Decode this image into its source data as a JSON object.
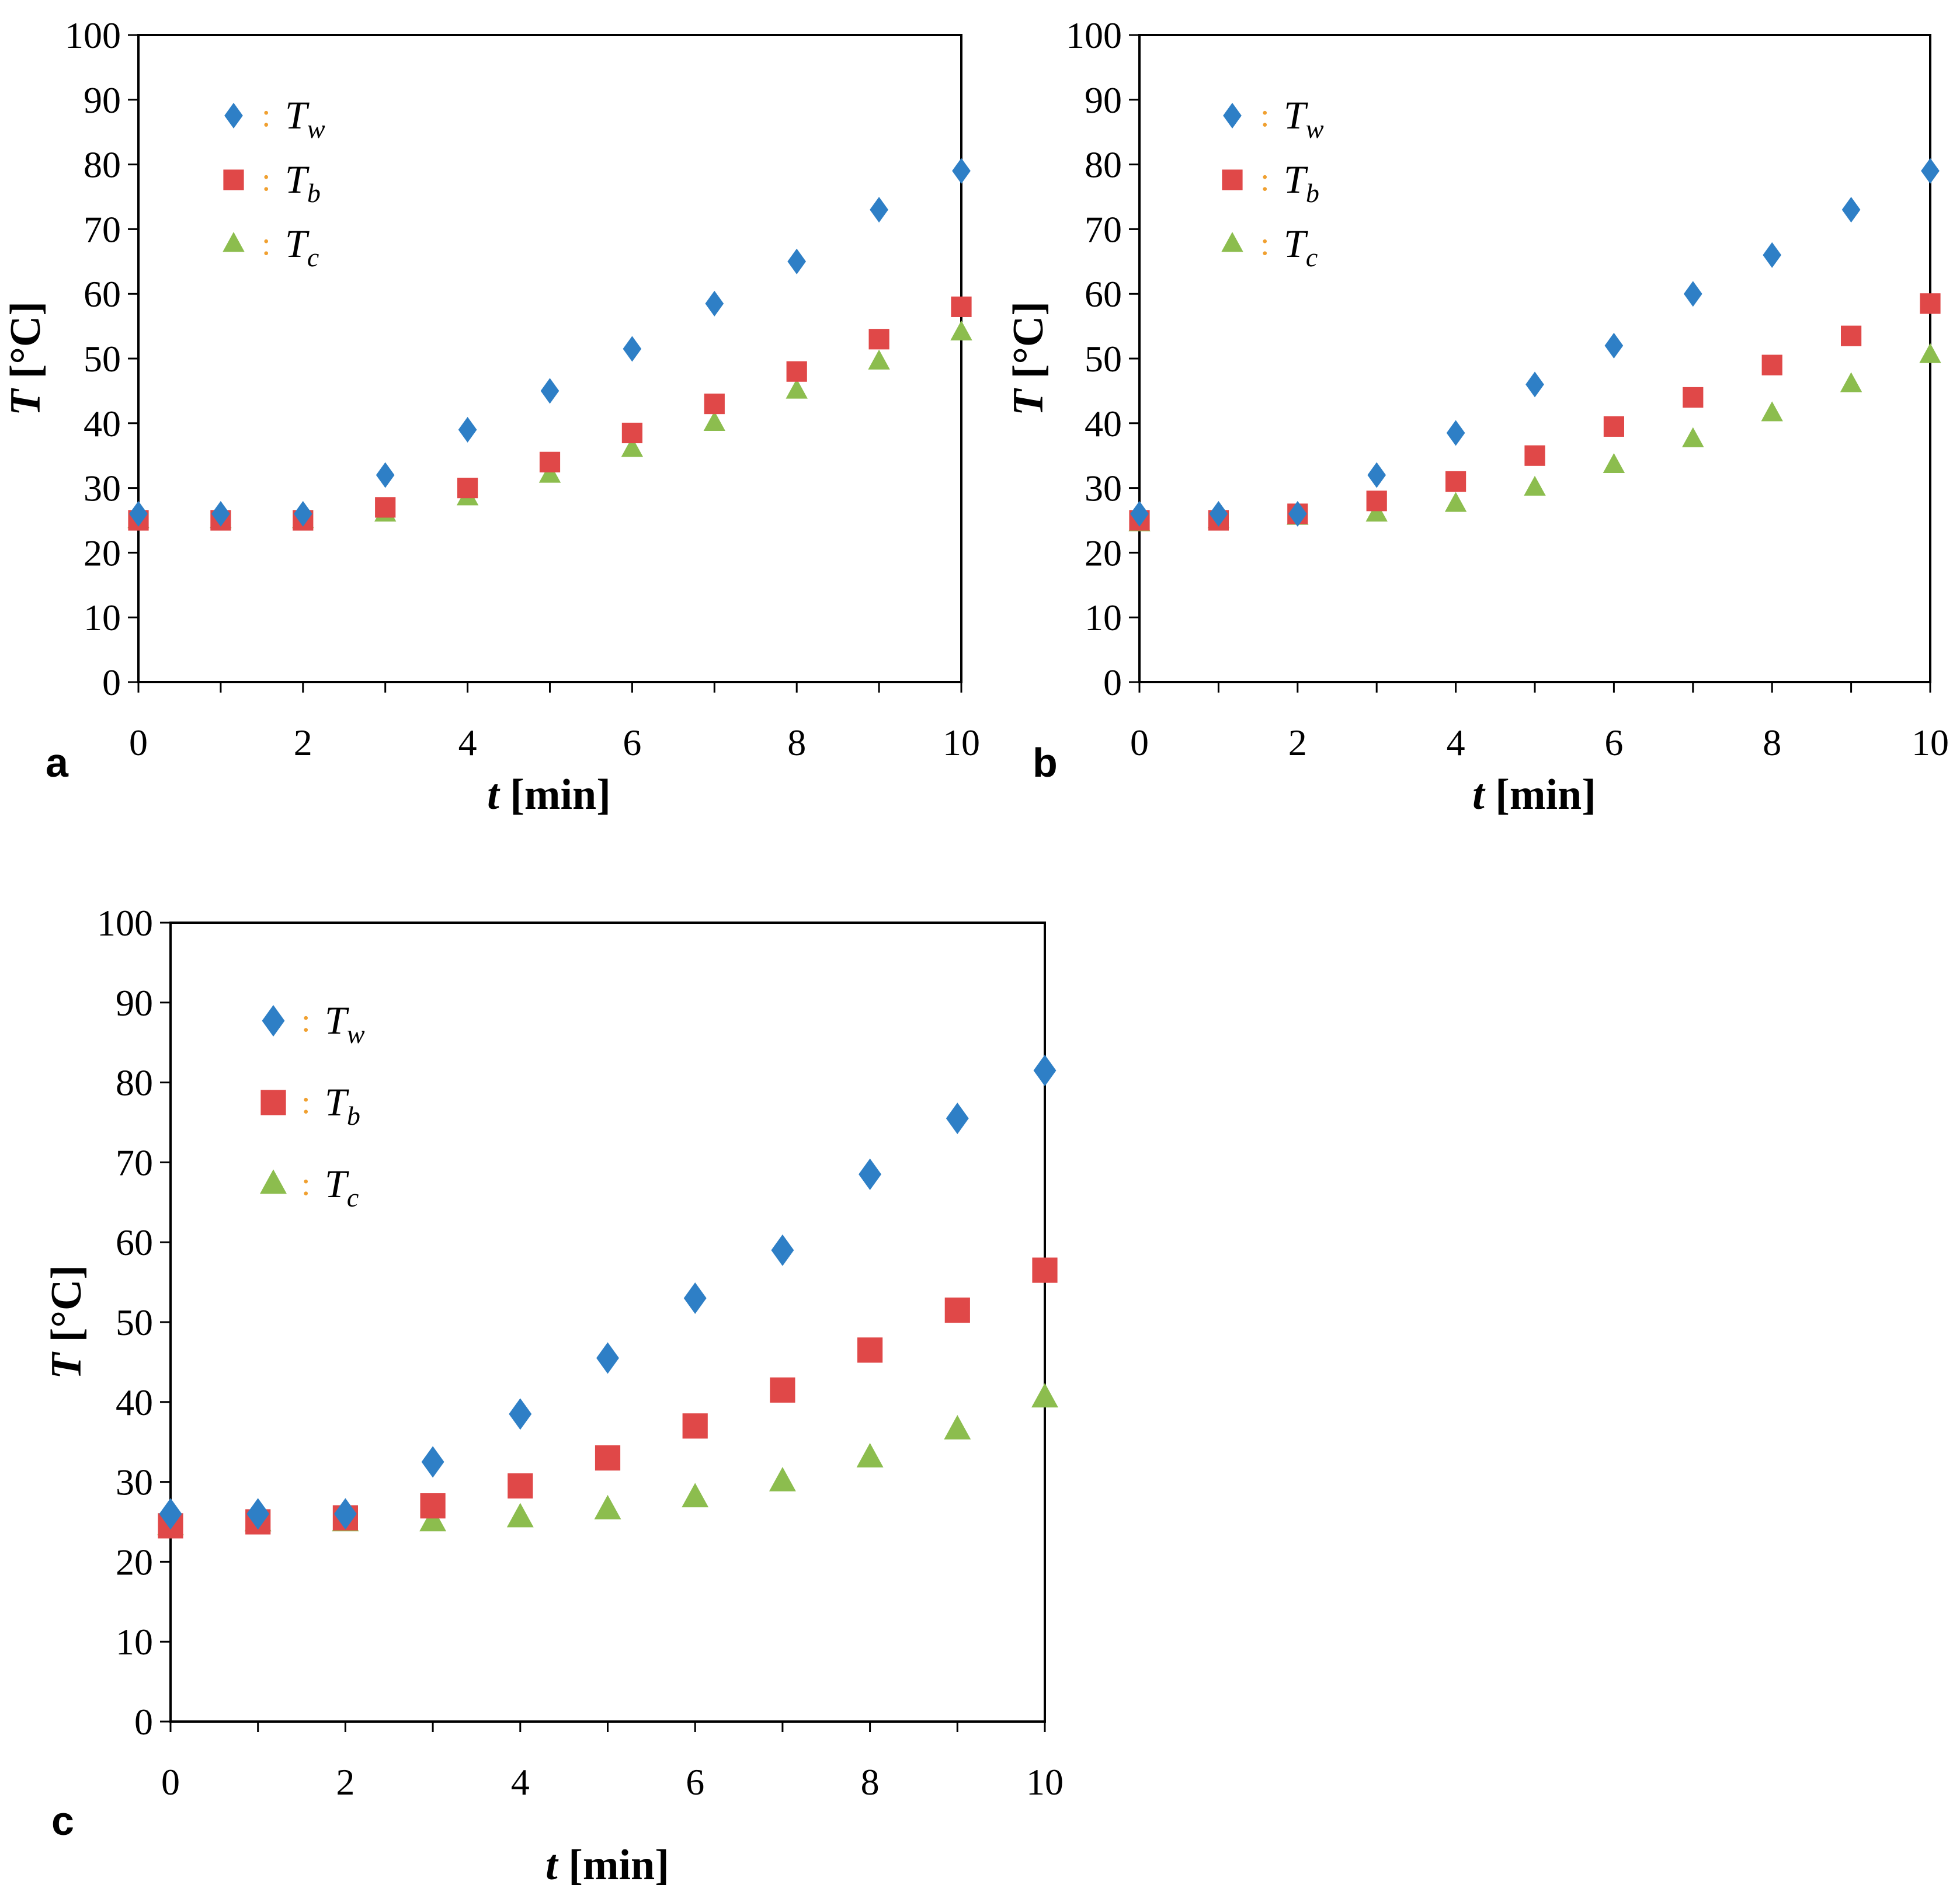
{
  "chart_data": [
    {
      "panel": "a",
      "type": "scatter",
      "x": [
        0,
        1,
        2,
        3,
        4,
        5,
        6,
        7,
        8,
        9,
        10
      ],
      "series": [
        {
          "name": "T_w",
          "marker": "diamond",
          "color": "#2e7fc6",
          "values": [
            26,
            26,
            26,
            32,
            39,
            45,
            51.5,
            58.5,
            65,
            73,
            79
          ]
        },
        {
          "name": "T_b",
          "marker": "square",
          "color": "#e04848",
          "values": [
            25,
            25,
            25,
            27,
            30,
            34,
            38.5,
            43,
            48,
            53,
            58
          ]
        },
        {
          "name": "T_c",
          "marker": "triangle",
          "color": "#8cbd4e",
          "values": [
            25,
            25,
            25,
            26,
            28.5,
            32,
            36,
            40,
            45,
            49.5,
            54
          ]
        }
      ],
      "xlabel": {
        "var": "t",
        "unit": "[min]"
      },
      "ylabel": {
        "var": "T",
        "unit": "[°C]"
      },
      "xlim": [
        0,
        10
      ],
      "ylim": [
        0,
        100
      ],
      "xticks": [
        "0",
        "2",
        "4",
        "6",
        "8",
        "10"
      ],
      "yticks": [
        "0",
        "10",
        "20",
        "30",
        "40",
        "50",
        "60",
        "70",
        "80",
        "90",
        "100"
      ],
      "legend": [
        {
          "main": "T",
          "sub": "w",
          "sep": ":"
        },
        {
          "main": "T",
          "sub": "b",
          "sep": ":"
        },
        {
          "main": "T",
          "sub": "c",
          "sep": ":"
        }
      ],
      "legend_position": "top-left",
      "grid": false
    },
    {
      "panel": "b",
      "type": "scatter",
      "x": [
        0,
        1,
        2,
        3,
        4,
        5,
        6,
        7,
        8,
        9,
        10
      ],
      "series": [
        {
          "name": "T_w",
          "marker": "diamond",
          "color": "#2e7fc6",
          "values": [
            26,
            26,
            26,
            32,
            38.5,
            46,
            52,
            60,
            66,
            73,
            79
          ]
        },
        {
          "name": "T_b",
          "marker": "square",
          "color": "#e04848",
          "values": [
            25,
            25,
            26,
            28,
            31,
            35,
            39.5,
            44,
            49,
            53.5,
            58.5
          ]
        },
        {
          "name": "T_c",
          "marker": "triangle",
          "color": "#8cbd4e",
          "values": [
            24.5,
            25,
            25.5,
            26,
            27.5,
            30,
            33.5,
            37.5,
            41.5,
            46,
            50.5
          ]
        }
      ],
      "xlabel": {
        "var": "t",
        "unit": "[min]"
      },
      "ylabel": {
        "var": "T",
        "unit": "[°C]"
      },
      "xlim": [
        0,
        10
      ],
      "ylim": [
        0,
        100
      ],
      "xticks": [
        "0",
        "2",
        "4",
        "6",
        "8",
        "10"
      ],
      "yticks": [
        "0",
        "10",
        "20",
        "30",
        "40",
        "50",
        "60",
        "70",
        "80",
        "90",
        "100"
      ],
      "legend": [
        {
          "main": "T",
          "sub": "w",
          "sep": ":"
        },
        {
          "main": "T",
          "sub": "b",
          "sep": ":"
        },
        {
          "main": "T",
          "sub": "c",
          "sep": ":"
        }
      ],
      "legend_position": "top-left",
      "grid": false
    },
    {
      "panel": "c",
      "type": "scatter",
      "x": [
        0,
        1,
        2,
        3,
        4,
        5,
        6,
        7,
        8,
        9,
        10
      ],
      "series": [
        {
          "name": "T_w",
          "marker": "diamond",
          "color": "#2e7fc6",
          "values": [
            26,
            26,
            26,
            32.5,
            38.5,
            45.5,
            53,
            59,
            68.5,
            75.5,
            81.5
          ]
        },
        {
          "name": "T_b",
          "marker": "square",
          "color": "#e04848",
          "values": [
            24.5,
            25,
            25.5,
            27,
            29.5,
            33,
            37,
            41.5,
            46.5,
            51.5,
            56.5
          ]
        },
        {
          "name": "T_c",
          "marker": "triangle",
          "color": "#8cbd4e",
          "values": [
            24.5,
            25,
            25,
            25,
            25.5,
            26.5,
            28,
            30,
            33,
            36.5,
            40.5
          ]
        }
      ],
      "xlabel": {
        "var": "t",
        "unit": "[min]"
      },
      "ylabel": {
        "var": "T",
        "unit": "[°C]"
      },
      "xlim": [
        0,
        10
      ],
      "ylim": [
        0,
        100
      ],
      "xticks": [
        "0",
        "2",
        "4",
        "6",
        "8",
        "10"
      ],
      "yticks": [
        "0",
        "10",
        "20",
        "30",
        "40",
        "50",
        "60",
        "70",
        "80",
        "90",
        "100"
      ],
      "legend": [
        {
          "main": "T",
          "sub": "w",
          "sep": ":"
        },
        {
          "main": "T",
          "sub": "b",
          "sep": ":"
        },
        {
          "main": "T",
          "sub": "c",
          "sep": ":"
        }
      ],
      "legend_position": "top-left",
      "grid": false
    }
  ]
}
